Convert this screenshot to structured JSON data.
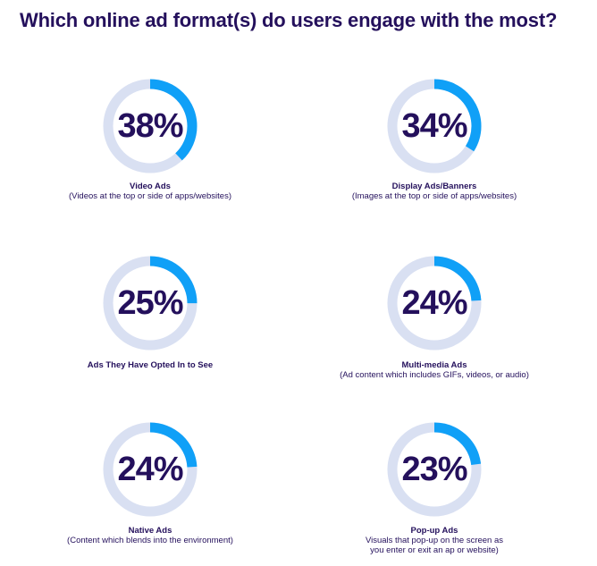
{
  "title": "Which online ad format(s) do users engage with the most?",
  "colors": {
    "track": "#d9e0f2",
    "fill": "#10a0f7",
    "text": "#24105c"
  },
  "chart_data": {
    "type": "donut",
    "items": [
      {
        "value": 38,
        "label": "38%",
        "name": "Video Ads",
        "desc": "(Videos at the top or side of apps/websites)"
      },
      {
        "value": 34,
        "label": "34%",
        "name": "Display Ads/Banners",
        "desc": "(Images at the top or side of apps/websites)"
      },
      {
        "value": 25,
        "label": "25%",
        "name": "Ads They Have Opted In to See",
        "desc": ""
      },
      {
        "value": 24,
        "label": "24%",
        "name": "Multi-media Ads",
        "desc": "(Ad content which includes GIFs, videos, or audio)"
      },
      {
        "value": 24,
        "label": "24%",
        "name": "Native Ads",
        "desc": "(Content which blends into the environment)"
      },
      {
        "value": 23,
        "label": "23%",
        "name": "Pop-up Ads",
        "desc": "Visuals that pop-up on the screen as you enter or exit an ap or website)"
      }
    ]
  }
}
